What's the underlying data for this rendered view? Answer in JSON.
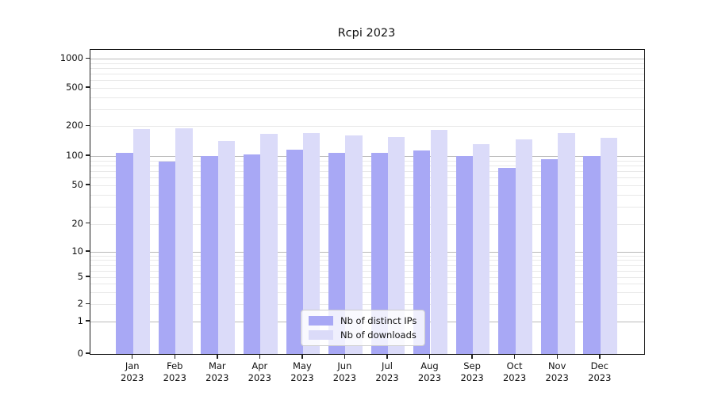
{
  "title": "Rcpi 2023",
  "chart_data": {
    "type": "bar",
    "title": "Rcpi 2023",
    "categories": [
      {
        "month": "Jan",
        "year": "2023"
      },
      {
        "month": "Feb",
        "year": "2023"
      },
      {
        "month": "Mar",
        "year": "2023"
      },
      {
        "month": "Apr",
        "year": "2023"
      },
      {
        "month": "May",
        "year": "2023"
      },
      {
        "month": "Jun",
        "year": "2023"
      },
      {
        "month": "Jul",
        "year": "2023"
      },
      {
        "month": "Aug",
        "year": "2023"
      },
      {
        "month": "Sep",
        "year": "2023"
      },
      {
        "month": "Oct",
        "year": "2023"
      },
      {
        "month": "Nov",
        "year": "2023"
      },
      {
        "month": "Dec",
        "year": "2023"
      }
    ],
    "series": [
      {
        "name": "Nb of distinct IPs",
        "color": "#a8a8f5",
        "values": [
          107,
          87,
          100,
          104,
          116,
          108,
          108,
          114,
          101,
          76,
          93,
          100
        ]
      },
      {
        "name": "Nb of downloads",
        "color": "#dbdbf9",
        "values": [
          188,
          190,
          141,
          167,
          171,
          162,
          155,
          183,
          133,
          148,
          170,
          153
        ]
      }
    ],
    "yscale": "symlog",
    "yticks": [
      0,
      1,
      2,
      5,
      10,
      20,
      50,
      100,
      200,
      500,
      1000
    ],
    "ylim": [
      0,
      1250
    ],
    "xlabel": "",
    "ylabel": "",
    "grid": true,
    "legend_position": "lower center",
    "grid_major_values": [
      1,
      10,
      100,
      1000
    ],
    "grid_minor_values": [
      2,
      3,
      4,
      5,
      6,
      7,
      8,
      9,
      20,
      30,
      40,
      50,
      60,
      70,
      80,
      90,
      200,
      300,
      400,
      500,
      600,
      700,
      800,
      900
    ]
  }
}
